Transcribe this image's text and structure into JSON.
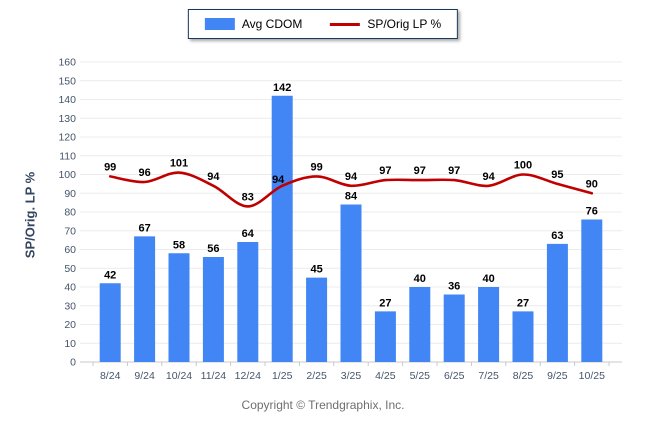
{
  "legend": {
    "items": [
      {
        "label": "Avg CDOM",
        "type": "bar",
        "color": "#4285F4"
      },
      {
        "label": "SP/Orig LP %",
        "type": "line",
        "color": "#C00000"
      }
    ]
  },
  "y_axis": {
    "title": "SP/Orig. LP %"
  },
  "footer": {
    "text": "Copyright © Trendgraphix, Inc."
  },
  "chart_data": {
    "type": "bar+line",
    "categories": [
      "8/24",
      "9/24",
      "10/24",
      "11/24",
      "12/24",
      "1/25",
      "2/25",
      "3/25",
      "4/25",
      "5/25",
      "6/25",
      "7/25",
      "8/25",
      "9/25",
      "10/25"
    ],
    "series": [
      {
        "name": "Avg CDOM",
        "type": "bar",
        "color": "#4285F4",
        "values": [
          42,
          67,
          58,
          56,
          64,
          142,
          45,
          84,
          27,
          40,
          36,
          40,
          27,
          63,
          76
        ]
      },
      {
        "name": "SP/Orig LP %",
        "type": "line",
        "color": "#C00000",
        "values": [
          99,
          96,
          101,
          94,
          83,
          94,
          99,
          94,
          97,
          97,
          97,
          94,
          100,
          95,
          90
        ]
      }
    ],
    "title": "",
    "xlabel": "",
    "ylabel": "SP/Orig. LP %",
    "ylim": [
      0,
      160
    ],
    "ytick_step": 10,
    "grid": true,
    "legend_position": "top",
    "colors": {
      "gridline": "#ECECEC",
      "axis_line": "#C8C8C8",
      "tick_label": "#44546A",
      "data_label": "#000000"
    }
  }
}
